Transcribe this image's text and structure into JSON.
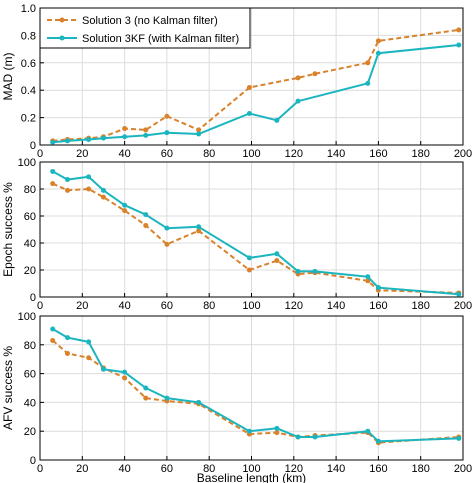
{
  "colors": {
    "solution3": "#d9822b",
    "solution3kf": "#1bb5c0",
    "grid": "#dcdcdc",
    "axis": "#000000"
  },
  "legend": {
    "items": [
      {
        "label": "Solution 3 (no Kalman filter)"
      },
      {
        "label": "Solution 3KF (with Kalman filter)"
      }
    ]
  },
  "chart_data": [
    {
      "type": "line",
      "ylabel": "MAD (m)",
      "xlim": [
        0,
        200
      ],
      "ylim": [
        0,
        1.0
      ],
      "xticks": [
        "0",
        "20",
        "40",
        "60",
        "80",
        "100",
        "120",
        "140",
        "160",
        "180",
        "200"
      ],
      "yticks": [
        "0",
        "0.2",
        "0.4",
        "0.6",
        "0.8",
        "1.0"
      ],
      "grid": true,
      "legend_position": "top-left",
      "series": [
        {
          "name": "Solution 3 (no Kalman filter)",
          "x": [
            6,
            13,
            23,
            30,
            40,
            50,
            60,
            75,
            99,
            122,
            130,
            155,
            160,
            198
          ],
          "y": [
            0.03,
            0.04,
            0.05,
            0.06,
            0.12,
            0.11,
            0.21,
            0.11,
            0.42,
            0.49,
            0.52,
            0.6,
            0.76,
            0.84
          ]
        },
        {
          "name": "Solution 3KF (with Kalman filter)",
          "x": [
            6,
            13,
            23,
            30,
            40,
            50,
            60,
            75,
            99,
            112,
            122,
            155,
            160,
            198
          ],
          "y": [
            0.02,
            0.03,
            0.04,
            0.05,
            0.06,
            0.07,
            0.09,
            0.08,
            0.23,
            0.18,
            0.32,
            0.45,
            0.67,
            0.73
          ]
        }
      ]
    },
    {
      "type": "line",
      "ylabel": "Epoch success %",
      "xlim": [
        0,
        200
      ],
      "ylim": [
        0,
        100
      ],
      "xticks": [
        "0",
        "20",
        "40",
        "60",
        "80",
        "100",
        "120",
        "140",
        "160",
        "180",
        "200"
      ],
      "yticks": [
        "0",
        "20",
        "40",
        "60",
        "80",
        "100"
      ],
      "grid": true,
      "series": [
        {
          "name": "Solution 3 (no Kalman filter)",
          "x": [
            6,
            13,
            23,
            30,
            40,
            50,
            60,
            75,
            99,
            112,
            122,
            130,
            155,
            160,
            198
          ],
          "y": [
            84,
            79,
            80,
            74,
            64,
            53,
            39,
            49,
            20,
            27,
            17,
            18,
            12,
            5,
            3
          ]
        },
        {
          "name": "Solution 3KF (with Kalman filter)",
          "x": [
            6,
            13,
            23,
            30,
            40,
            50,
            60,
            75,
            99,
            112,
            122,
            130,
            155,
            160,
            198
          ],
          "y": [
            93,
            87,
            89,
            79,
            68,
            61,
            51,
            52,
            29,
            32,
            19,
            19,
            15,
            7,
            2
          ]
        }
      ]
    },
    {
      "type": "line",
      "ylabel": "AFV success %",
      "xlabel": "Baseline length (km)",
      "xlim": [
        0,
        200
      ],
      "ylim": [
        0,
        100
      ],
      "xticks": [
        "0",
        "20",
        "40",
        "60",
        "80",
        "100",
        "120",
        "140",
        "160",
        "180",
        "200"
      ],
      "yticks": [
        "0",
        "20",
        "40",
        "60",
        "80",
        "100"
      ],
      "grid": true,
      "series": [
        {
          "name": "Solution 3 (no Kalman filter)",
          "x": [
            6,
            13,
            23,
            30,
            40,
            50,
            60,
            75,
            99,
            112,
            122,
            130,
            155,
            160,
            198
          ],
          "y": [
            83,
            74,
            71,
            64,
            57,
            43,
            41,
            39,
            18,
            19,
            16,
            17,
            19,
            12,
            16
          ]
        },
        {
          "name": "Solution 3KF (with Kalman filter)",
          "x": [
            6,
            13,
            23,
            30,
            40,
            50,
            60,
            75,
            99,
            112,
            122,
            130,
            155,
            160,
            198
          ],
          "y": [
            91,
            85,
            82,
            63,
            61,
            50,
            43,
            40,
            20,
            22,
            16,
            16,
            20,
            13,
            15
          ]
        }
      ]
    }
  ]
}
